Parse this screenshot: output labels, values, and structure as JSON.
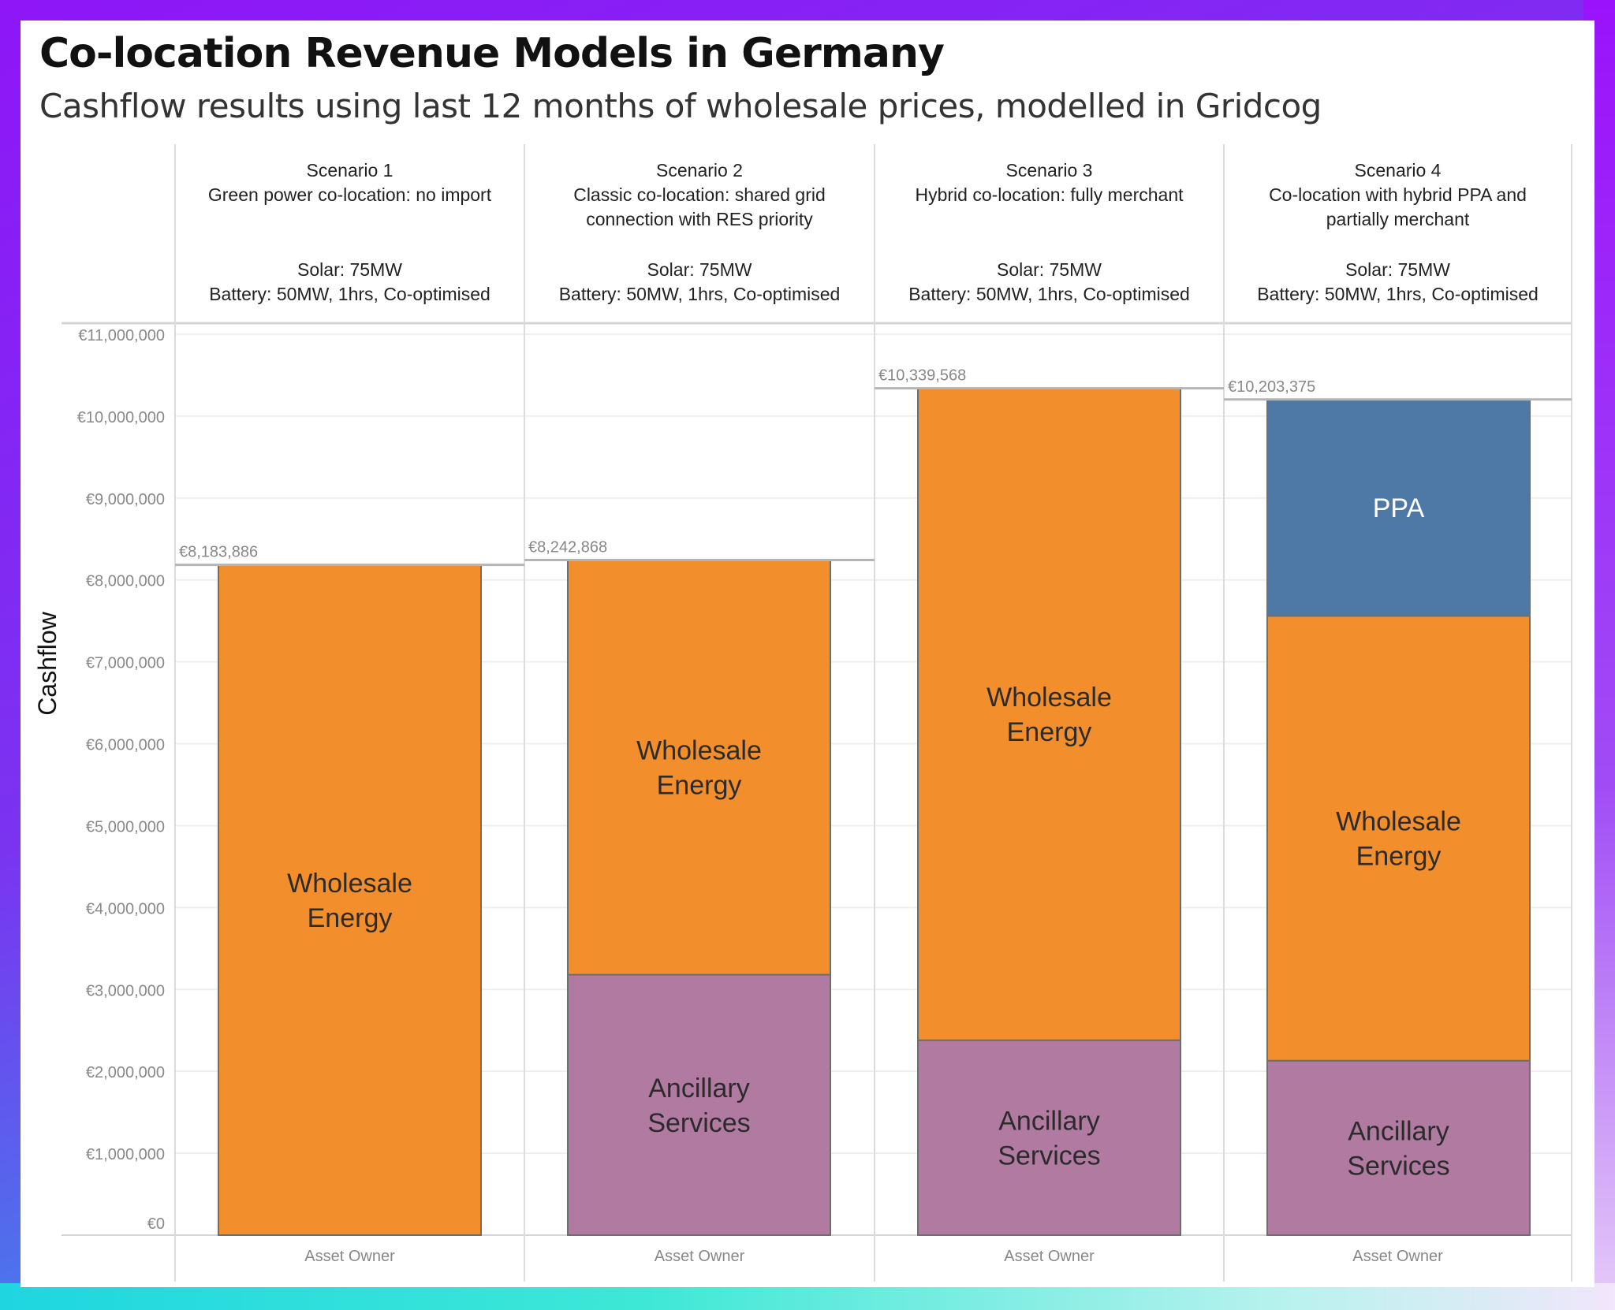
{
  "title": "Co-location Revenue Models in Germany",
  "subtitle": "Cashflow results using last 12 months of wholesale prices, modelled in Gridcog",
  "chart_data": {
    "type": "bar",
    "stacked": true,
    "ylabel": "Cashflow",
    "ylim": [
      0,
      11000000
    ],
    "yticks": [
      0,
      1000000,
      2000000,
      3000000,
      4000000,
      5000000,
      6000000,
      7000000,
      8000000,
      9000000,
      10000000,
      11000000
    ],
    "ytick_labels": [
      "€0",
      "€1,000,000",
      "€2,000,000",
      "€3,000,000",
      "€4,000,000",
      "€5,000,000",
      "€6,000,000",
      "€7,000,000",
      "€8,000,000",
      "€9,000,000",
      "€10,000,000",
      "€11,000,000"
    ],
    "grid": true,
    "colors": {
      "Ancillary Services": "#b07aa1",
      "Wholesale Energy": "#f28e2b",
      "PPA": "#4e79a7"
    },
    "panels": [
      {
        "header": [
          "Scenario 1",
          "Green power co-location: no import",
          "",
          "Solar: 75MW",
          "Battery: 50MW, 1hrs, Co-optimised"
        ],
        "category": "Asset Owner",
        "total_label": "€8,183,886",
        "total": 8183886,
        "segments": [
          {
            "name": "Wholesale Energy",
            "label": [
              "Wholesale",
              "Energy"
            ],
            "value": 8183886
          }
        ]
      },
      {
        "header": [
          "Scenario 2",
          "Classic co-location: shared grid",
          "connection with RES priority",
          "Solar: 75MW",
          "Battery: 50MW, 1hrs, Co-optimised"
        ],
        "category": "Asset Owner",
        "total_label": "€8,242,868",
        "total": 8242868,
        "segments": [
          {
            "name": "Ancillary Services",
            "label": [
              "Ancillary",
              "Services"
            ],
            "value": 3180000
          },
          {
            "name": "Wholesale Energy",
            "label": [
              "Wholesale",
              "Energy"
            ],
            "value": 5062868
          }
        ]
      },
      {
        "header": [
          "Scenario 3",
          "Hybrid co-location: fully merchant",
          "",
          "Solar: 75MW",
          "Battery: 50MW, 1hrs, Co-optimised"
        ],
        "category": "Asset Owner",
        "total_label": "€10,339,568",
        "total": 10339568,
        "segments": [
          {
            "name": "Ancillary Services",
            "label": [
              "Ancillary",
              "Services"
            ],
            "value": 2380000
          },
          {
            "name": "Wholesale Energy",
            "label": [
              "Wholesale",
              "Energy"
            ],
            "value": 7959568
          }
        ]
      },
      {
        "header": [
          "Scenario 4",
          "Co-location with hybrid PPA and",
          "partially merchant",
          "Solar: 75MW",
          "Battery: 50MW, 1hrs, Co-optimised"
        ],
        "category": "Asset Owner",
        "total_label": "€10,203,375",
        "total": 10203375,
        "segments": [
          {
            "name": "Ancillary Services",
            "label": [
              "Ancillary",
              "Services"
            ],
            "value": 2130000
          },
          {
            "name": "Wholesale Energy",
            "label": [
              "Wholesale",
              "Energy"
            ],
            "value": 5430000
          },
          {
            "name": "PPA",
            "label": [
              "PPA"
            ],
            "value": 2643375
          }
        ]
      }
    ]
  }
}
